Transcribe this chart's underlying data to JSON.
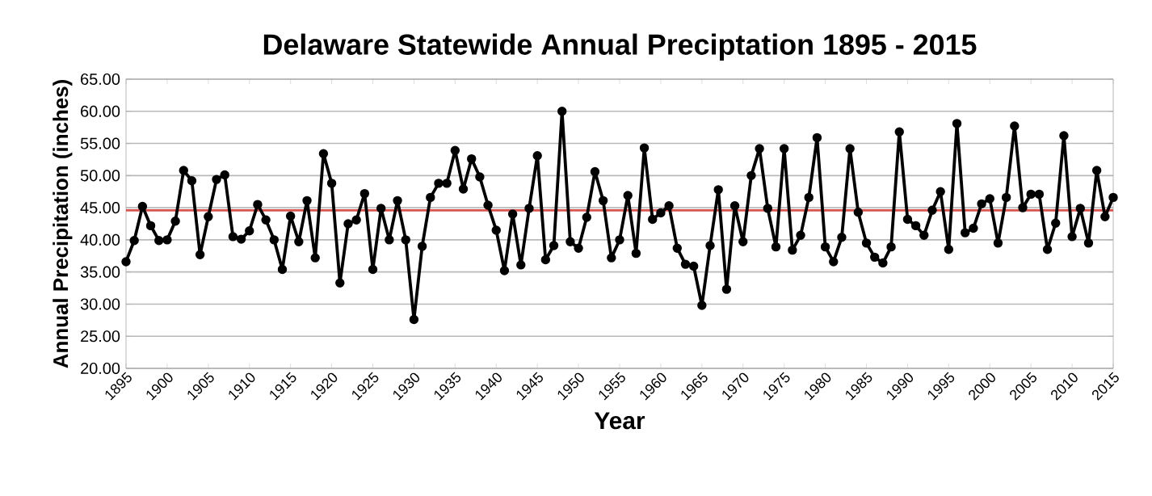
{
  "chart_data": {
    "type": "line",
    "title": "Delaware Statewide Annual Preciptation 1895 - 2015",
    "xlabel": "Year",
    "ylabel": "Annual Precipitation (inches)",
    "x": [
      1895,
      1896,
      1897,
      1898,
      1899,
      1900,
      1901,
      1902,
      1903,
      1904,
      1905,
      1906,
      1907,
      1908,
      1909,
      1910,
      1911,
      1912,
      1913,
      1914,
      1915,
      1916,
      1917,
      1918,
      1919,
      1920,
      1921,
      1922,
      1923,
      1924,
      1925,
      1926,
      1927,
      1928,
      1929,
      1930,
      1931,
      1932,
      1933,
      1934,
      1935,
      1936,
      1937,
      1938,
      1939,
      1940,
      1941,
      1942,
      1943,
      1944,
      1945,
      1946,
      1947,
      1948,
      1949,
      1950,
      1951,
      1952,
      1953,
      1954,
      1955,
      1956,
      1957,
      1958,
      1959,
      1960,
      1961,
      1962,
      1963,
      1964,
      1965,
      1966,
      1967,
      1968,
      1969,
      1970,
      1971,
      1972,
      1973,
      1974,
      1975,
      1976,
      1977,
      1978,
      1979,
      1980,
      1981,
      1982,
      1983,
      1984,
      1985,
      1986,
      1987,
      1988,
      1989,
      1990,
      1991,
      1992,
      1993,
      1994,
      1995,
      1996,
      1997,
      1998,
      1999,
      2000,
      2001,
      2002,
      2003,
      2004,
      2005,
      2006,
      2007,
      2008,
      2009,
      2010,
      2011,
      2012,
      2013,
      2014,
      2015
    ],
    "series": [
      {
        "color": "#000000",
        "values": [
          36.6,
          39.9,
          45.2,
          42.2,
          39.9,
          40.0,
          42.9,
          50.8,
          49.2,
          37.7,
          43.6,
          49.4,
          50.1,
          40.5,
          40.1,
          41.4,
          45.5,
          43.1,
          40.0,
          35.4,
          43.7,
          39.7,
          46.1,
          37.2,
          53.4,
          48.8,
          33.3,
          42.5,
          43.1,
          47.2,
          35.4,
          44.9,
          40.0,
          46.1,
          40.0,
          27.6,
          39.0,
          46.6,
          48.8,
          48.8,
          53.9,
          47.9,
          52.6,
          49.8,
          45.4,
          41.5,
          35.2,
          44.0,
          36.1,
          44.9,
          53.1,
          36.9,
          39.1,
          60.0,
          39.7,
          38.7,
          43.5,
          50.6,
          46.1,
          37.2,
          40.0,
          46.9,
          37.9,
          54.3,
          43.2,
          44.2,
          45.3,
          38.7,
          36.2,
          35.9,
          29.8,
          39.1,
          47.8,
          32.3,
          45.3,
          39.7,
          50.0,
          54.2,
          44.9,
          38.9,
          54.2,
          38.4,
          40.7,
          46.6,
          55.9,
          38.9,
          36.6,
          40.4,
          54.2,
          44.3,
          39.5,
          37.3,
          36.4,
          38.9,
          56.8,
          43.2,
          42.2,
          40.7,
          44.6,
          47.5,
          38.5,
          58.1,
          41.1,
          41.8,
          45.6,
          46.4,
          39.5,
          46.6,
          57.7,
          45.0,
          47.1,
          47.1,
          38.5,
          42.6,
          56.2,
          40.5,
          44.9,
          39.5,
          50.8,
          43.6,
          46.6
        ]
      }
    ],
    "xlim": [
      1895,
      2015
    ],
    "xticks": [
      1895,
      1900,
      1905,
      1910,
      1915,
      1920,
      1925,
      1930,
      1935,
      1940,
      1945,
      1950,
      1955,
      1960,
      1965,
      1970,
      1975,
      1980,
      1985,
      1990,
      1995,
      2000,
      2005,
      2010,
      2015
    ],
    "ylim": [
      20,
      65
    ],
    "yticks": [
      {
        "value": 20,
        "label": "20.00"
      },
      {
        "value": 25,
        "label": "25.00"
      },
      {
        "value": 30,
        "label": "30.00"
      },
      {
        "value": 35,
        "label": "35.00"
      },
      {
        "value": 40,
        "label": "40.00"
      },
      {
        "value": 45,
        "label": "45.00"
      },
      {
        "value": 50,
        "label": "50.00"
      },
      {
        "value": 55,
        "label": "55.00"
      },
      {
        "value": 60,
        "label": "60.00"
      },
      {
        "value": 65,
        "label": "65.00"
      }
    ],
    "ref_lines": [
      {
        "axis": "y",
        "value": 44.6,
        "color": "#d9534f"
      }
    ],
    "grid": "y",
    "marker": "circle",
    "line_style": "solid"
  }
}
